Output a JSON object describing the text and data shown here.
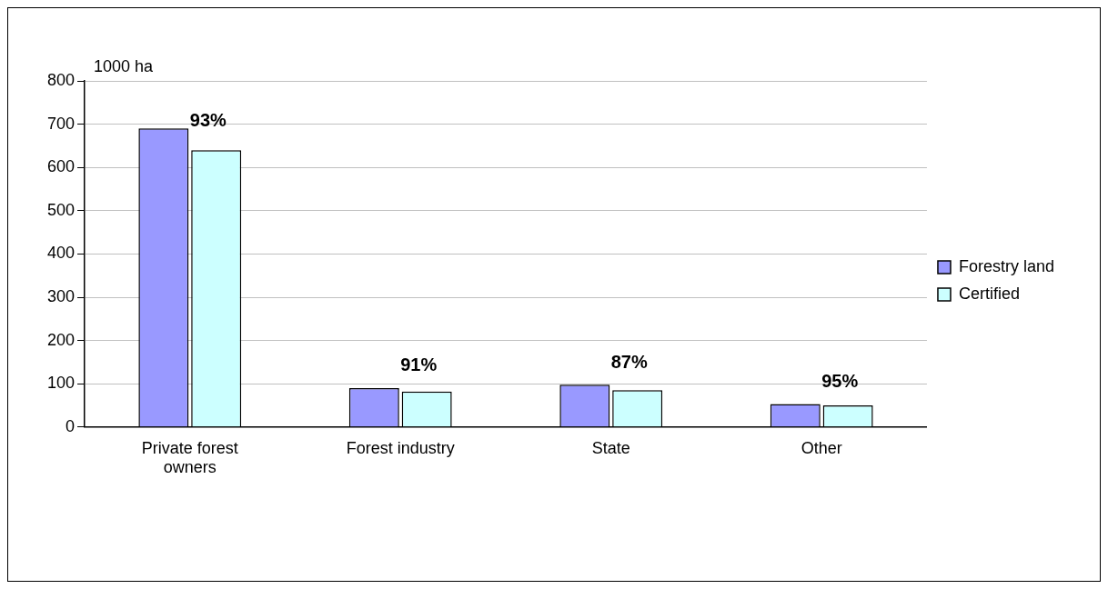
{
  "chart_data": {
    "type": "bar",
    "ylabel": "1000 ha",
    "categories": [
      "Private forest owners",
      "Forest industry",
      "State",
      "Other"
    ],
    "series": [
      {
        "name": "Forestry land",
        "color": "#9999ff",
        "values": [
          690,
          90,
          98,
          53
        ]
      },
      {
        "name": "Certified",
        "color": "#ccffff",
        "values": [
          640,
          82,
          85,
          50
        ]
      }
    ],
    "ylim": [
      0,
      800
    ],
    "yticks": [
      0,
      100,
      200,
      300,
      400,
      500,
      600,
      700,
      800
    ],
    "grid": "y",
    "legend": "right",
    "annotations": [
      "93%",
      "91%",
      "87%",
      "95%"
    ]
  }
}
